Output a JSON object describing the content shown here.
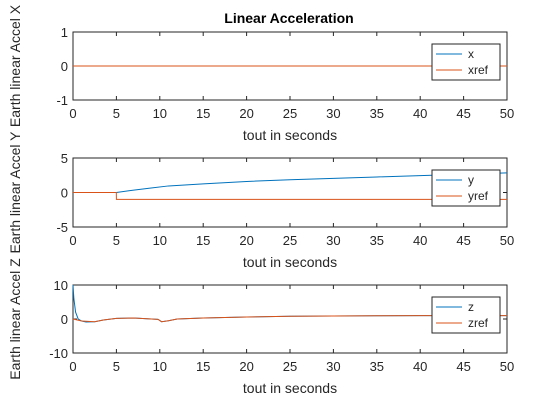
{
  "title": "Linear Acceleration",
  "chart_data": [
    {
      "type": "line",
      "title": "Linear Acceleration",
      "xlabel": "tout in seconds",
      "ylabel": "Earth linear Accel X",
      "xlim": [
        0,
        50
      ],
      "ylim": [
        -1,
        1
      ],
      "xticks": [
        0,
        5,
        10,
        15,
        20,
        25,
        30,
        35,
        40,
        45,
        50
      ],
      "yticks": [
        -1,
        0,
        1
      ],
      "legend": "top-right",
      "series": [
        {
          "name": "x",
          "color": "#0072BD",
          "x": [
            0,
            50
          ],
          "y": [
            0,
            0
          ]
        },
        {
          "name": "xref",
          "color": "#D95319",
          "x": [
            0,
            50
          ],
          "y": [
            0,
            0
          ]
        }
      ]
    },
    {
      "type": "line",
      "xlabel": "tout in seconds",
      "ylabel": "Earth linear Accel Y",
      "xlim": [
        0,
        50
      ],
      "ylim": [
        -5,
        5
      ],
      "xticks": [
        0,
        5,
        10,
        15,
        20,
        25,
        30,
        35,
        40,
        45,
        50
      ],
      "yticks": [
        -5,
        0,
        5
      ],
      "legend": "top-right",
      "series": [
        {
          "name": "y",
          "color": "#0072BD",
          "x": [
            0,
            5,
            7,
            9,
            11,
            15,
            20,
            25,
            30,
            35,
            40,
            45,
            50
          ],
          "y": [
            0,
            0,
            0.35,
            0.65,
            0.95,
            1.25,
            1.6,
            1.85,
            2.05,
            2.25,
            2.45,
            2.65,
            2.85
          ]
        },
        {
          "name": "yref",
          "color": "#D95319",
          "x": [
            0,
            4.99,
            5,
            50
          ],
          "y": [
            0,
            0,
            -1,
            -1
          ]
        }
      ]
    },
    {
      "type": "line",
      "xlabel": "tout in seconds",
      "ylabel": "Earth linear Accel Z",
      "xlim": [
        0,
        50
      ],
      "ylim": [
        -10,
        10
      ],
      "xticks": [
        0,
        5,
        10,
        15,
        20,
        25,
        30,
        35,
        40,
        45,
        50
      ],
      "yticks": [
        -10,
        0,
        10
      ],
      "legend": "top-right",
      "series": [
        {
          "name": "z",
          "color": "#0072BD",
          "x": [
            0,
            0.1,
            0.3,
            0.6,
            1,
            1.5,
            2.5,
            3.5,
            5,
            7,
            9.8,
            10.2,
            11,
            12,
            15,
            20,
            25,
            30,
            35,
            40,
            45,
            50
          ],
          "y": [
            10,
            6,
            2,
            0,
            -0.6,
            -0.9,
            -0.8,
            -0.3,
            0.2,
            0.3,
            -0.1,
            -0.8,
            -0.5,
            0,
            0.3,
            0.6,
            0.8,
            0.9,
            0.95,
            1.0,
            1.0,
            1.0
          ]
        },
        {
          "name": "zref",
          "color": "#D95319",
          "x": [
            0,
            0.5,
            1,
            2.5,
            3.5,
            5,
            7,
            9.8,
            10.2,
            11,
            12,
            15,
            20,
            25,
            30,
            35,
            40,
            45,
            50
          ],
          "y": [
            0,
            -0.3,
            -0.6,
            -0.8,
            -0.3,
            0.2,
            0.3,
            -0.1,
            -0.8,
            -0.5,
            0,
            0.3,
            0.6,
            0.8,
            0.9,
            0.95,
            1.0,
            1.0,
            1.0
          ]
        }
      ]
    }
  ]
}
